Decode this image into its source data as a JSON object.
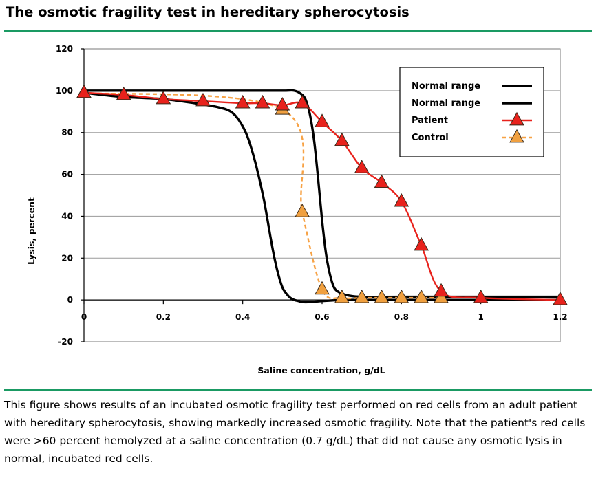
{
  "header": {
    "title": "The osmotic fragility test in hereditary spherocytosis",
    "rule_color": "#1a9a63"
  },
  "caption": "This figure shows results of an incubated osmotic fragility test performed on red cells from an adult patient with hereditary spherocytosis, showing markedly increased osmotic fragility. Note that the patient's red cells were >60 percent hemolyzed at a saline concentration (0.7 g/dL) that did not cause any osmotic lysis in normal, incubated red cells.",
  "chart_data": {
    "type": "line",
    "title": "",
    "xlabel": "Saline concentration, g/dL",
    "ylabel": "Lysis, percent",
    "xlim": [
      0,
      1.2
    ],
    "ylim": [
      -20,
      120
    ],
    "xticks": [
      0,
      0.2,
      0.4,
      0.6,
      0.8,
      1,
      1.2
    ],
    "xtick_labels": [
      "0",
      "0.2",
      "0.4",
      "0.6",
      "0.8",
      "1",
      "1.2"
    ],
    "yticks": [
      -20,
      0,
      20,
      40,
      60,
      80,
      100,
      120
    ],
    "ytick_labels": [
      "-20",
      "0",
      "20",
      "40",
      "60",
      "80",
      "100",
      "120"
    ],
    "grid": "horizontal",
    "legend_position": "top-right",
    "series": [
      {
        "name": "Normal range",
        "color": "#000000",
        "style": "solid-thick",
        "marker": "none",
        "x": [
          0,
          0.1,
          0.2,
          0.28,
          0.34,
          0.37,
          0.39,
          0.41,
          0.43,
          0.45,
          0.46,
          0.47,
          0.48,
          0.49,
          0.5,
          0.51,
          0.52,
          0.53,
          0.54,
          0.55,
          0.57,
          0.6,
          0.65,
          0.7,
          0.8,
          1.0,
          1.2
        ],
        "y": [
          99,
          97,
          96,
          94,
          92,
          90,
          86,
          79,
          67,
          51,
          41,
          30,
          20,
          12,
          6,
          3,
          1,
          0,
          -0.5,
          -1,
          -1,
          -0.5,
          0,
          0,
          0,
          0,
          0
        ]
      },
      {
        "name": "Normal range",
        "color": "#000000",
        "style": "solid-thick",
        "marker": "none",
        "x": [
          0,
          0.2,
          0.4,
          0.5,
          0.53,
          0.55,
          0.56,
          0.57,
          0.58,
          0.59,
          0.6,
          0.61,
          0.62,
          0.63,
          0.64,
          0.65,
          0.67,
          0.7,
          0.8,
          1.0,
          1.2
        ],
        "y": [
          100,
          100,
          100,
          100,
          100,
          98,
          95,
          88,
          76,
          58,
          38,
          22,
          12,
          6,
          4,
          3,
          2,
          1.5,
          1.5,
          1.5,
          1.5
        ]
      },
      {
        "name": "Patient",
        "color": "#e8221c",
        "style": "solid",
        "marker": "triangle",
        "x": [
          0,
          0.1,
          0.2,
          0.3,
          0.4,
          0.45,
          0.5,
          0.55,
          0.6,
          0.65,
          0.7,
          0.75,
          0.8,
          0.85,
          0.9,
          1.0,
          1.2
        ],
        "y": [
          99,
          98,
          96,
          95,
          94,
          94,
          93,
          94,
          85,
          76,
          63,
          56,
          47,
          26,
          4,
          1,
          0
        ]
      },
      {
        "name": "Control",
        "color": "#f0a040",
        "line_color": "#f7a245",
        "style": "dashed",
        "marker": "triangle",
        "x": [
          0,
          0.5,
          0.55,
          0.6,
          0.65,
          0.7,
          0.75,
          0.8,
          0.85,
          0.9
        ],
        "y": [
          99,
          91,
          42,
          5,
          1,
          1,
          1,
          1,
          1,
          1
        ]
      }
    ]
  }
}
